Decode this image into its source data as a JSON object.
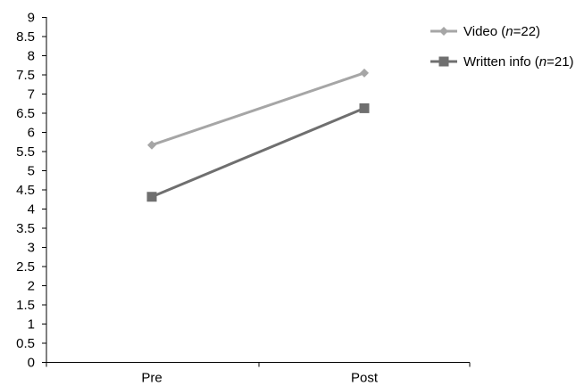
{
  "chart_data": {
    "type": "line",
    "categories": [
      "Pre",
      "Post"
    ],
    "ylim": [
      0,
      9
    ],
    "yticks": [
      "0",
      "0.5",
      "1",
      "1.5",
      "2",
      "2.5",
      "3",
      "3.5",
      "4",
      "4.5",
      "5",
      "5.5",
      "6",
      "6.5",
      "7",
      "7.5",
      "8",
      "8.5",
      "9"
    ],
    "grid": false,
    "legend_position": "top-right",
    "series": [
      {
        "name_prefix": "Video (",
        "name_italic": "n",
        "name_suffix": "=22)",
        "values": [
          5.67,
          7.55
        ],
        "marker": "diamond",
        "color": "#a6a6a6"
      },
      {
        "name_prefix": "Written info (",
        "name_italic": "n",
        "name_suffix": "=21)",
        "values": [
          4.32,
          6.63
        ],
        "marker": "square",
        "color": "#6f6f6f"
      }
    ]
  }
}
